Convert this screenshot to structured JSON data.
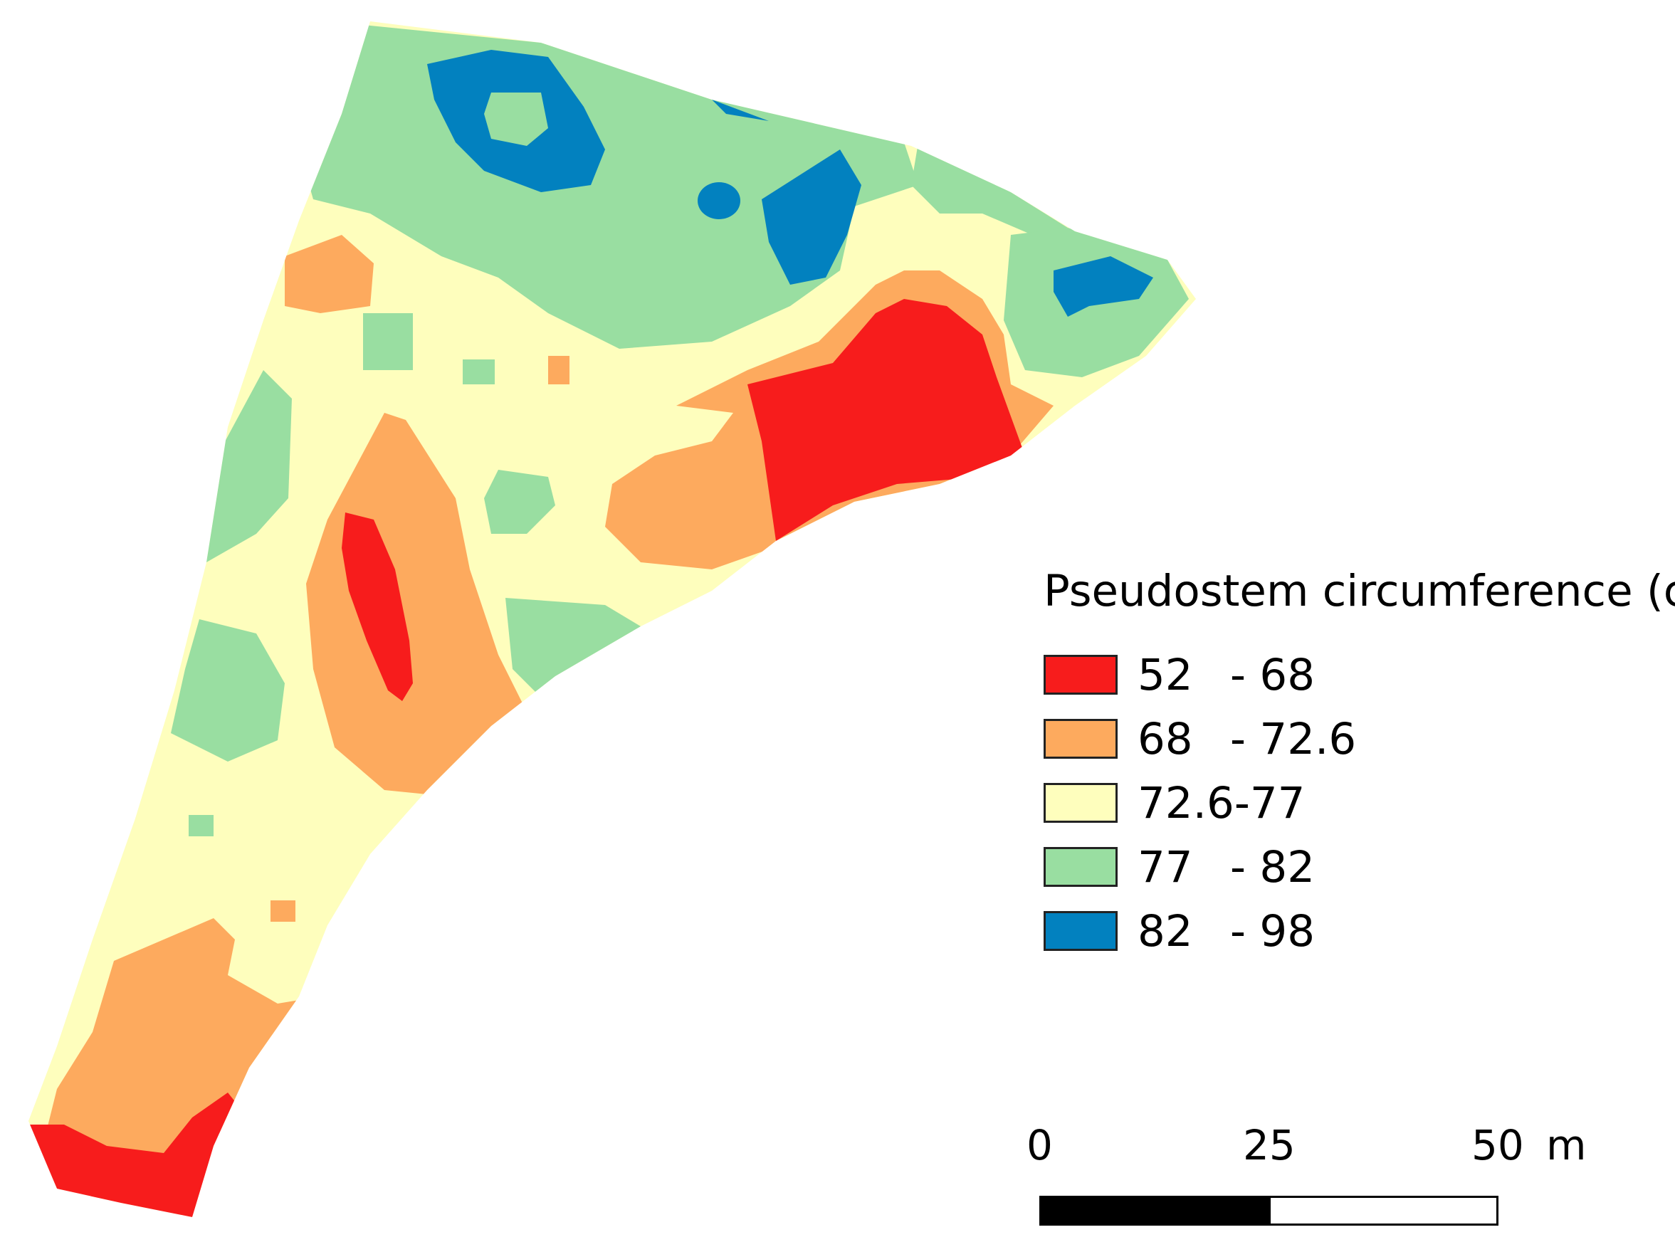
{
  "colors": {
    "red": "#f71c1c",
    "orange": "#fdaa5e",
    "yellow": "#fefebd",
    "green": "#99dea1",
    "blue": "#0281bf"
  },
  "legend": {
    "title": "Pseudostem circumference (cm)",
    "classes": [
      {
        "low": "52",
        "high": "- 68",
        "color": "#f71c1c"
      },
      {
        "low": "68",
        "high": "- 72.6",
        "color": "#fdaa5e"
      },
      {
        "low": "72.6-",
        "high": "77",
        "color": "#fefebd"
      },
      {
        "low": "77",
        "high": "- 82",
        "color": "#99dea1"
      },
      {
        "low": "82",
        "high": "- 98",
        "color": "#0281bf"
      }
    ]
  },
  "scale_bar": {
    "labels": [
      "0",
      "25",
      "50"
    ],
    "unit": "m"
  }
}
